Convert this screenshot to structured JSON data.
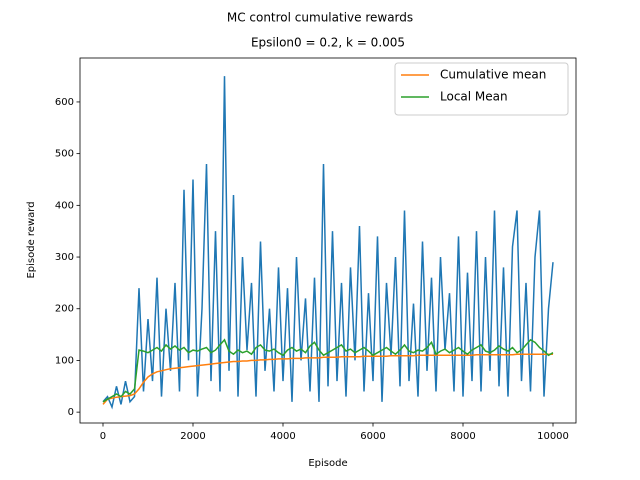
{
  "chart_data": {
    "type": "line",
    "title": "MC control cumulative rewards",
    "subtitle": "Epsilon0 = 0.2, k = 0.005",
    "x_label": "Episode",
    "y_label": "Episode reward",
    "x": [
      0,
      100,
      200,
      300,
      400,
      500,
      600,
      700,
      800,
      900,
      1000,
      1100,
      1200,
      1300,
      1400,
      1500,
      1600,
      1700,
      1800,
      1900,
      2000,
      2100,
      2200,
      2300,
      2400,
      2500,
      2600,
      2700,
      2800,
      2900,
      3000,
      3100,
      3200,
      3300,
      3400,
      3500,
      3600,
      3700,
      3800,
      3900,
      4000,
      4100,
      4200,
      4300,
      4400,
      4500,
      4600,
      4700,
      4800,
      4900,
      5000,
      5100,
      5200,
      5300,
      5400,
      5500,
      5600,
      5700,
      5800,
      5900,
      6000,
      6100,
      6200,
      6300,
      6400,
      6500,
      6600,
      6700,
      6800,
      6900,
      7000,
      7100,
      7200,
      7300,
      7400,
      7500,
      7600,
      7700,
      7800,
      7900,
      8000,
      8100,
      8200,
      8300,
      8400,
      8500,
      8600,
      8700,
      8800,
      8900,
      9000,
      9100,
      9200,
      9300,
      9400,
      9500,
      9600,
      9700,
      9800,
      9900,
      10000
    ],
    "series": [
      {
        "color": "#1f77b4",
        "values": [
          20,
          30,
          10,
          50,
          15,
          60,
          20,
          30,
          240,
          40,
          180,
          60,
          260,
          30,
          200,
          80,
          250,
          40,
          430,
          100,
          450,
          30,
          200,
          480,
          60,
          350,
          40,
          650,
          80,
          420,
          30,
          300,
          120,
          250,
          30,
          330,
          80,
          200,
          40,
          280,
          60,
          240,
          20,
          300,
          100,
          220,
          40,
          260,
          20,
          480,
          50,
          350,
          60,
          250,
          30,
          280,
          100,
          360,
          40,
          230,
          60,
          340,
          20,
          250,
          110,
          300,
          50,
          390,
          60,
          210,
          30,
          330,
          80,
          260,
          40,
          300,
          120,
          230,
          40,
          340,
          30,
          270,
          60,
          350,
          40,
          300,
          80,
          390,
          50,
          280,
          30,
          320,
          390,
          60,
          250,
          40,
          300,
          390,
          30,
          200,
          290
        ]
      },
      {
        "name": "Cumulative mean",
        "color": "#ff7f0e",
        "values": [
          15,
          25,
          27,
          29,
          30,
          31,
          32,
          35,
          45,
          58,
          68,
          74,
          78,
          80,
          82,
          84,
          85,
          86,
          87,
          88,
          89,
          90,
          91,
          92,
          93,
          94,
          95,
          96,
          97,
          98,
          98,
          99,
          99,
          100,
          100,
          101,
          101,
          102,
          102,
          103,
          103,
          103,
          104,
          104,
          104,
          105,
          105,
          105,
          105,
          106,
          106,
          106,
          106,
          107,
          107,
          107,
          107,
          107,
          108,
          108,
          108,
          108,
          108,
          108,
          109,
          109,
          109,
          109,
          109,
          109,
          110,
          110,
          110,
          110,
          110,
          110,
          110,
          110,
          110,
          110,
          110,
          110,
          110,
          111,
          111,
          111,
          111,
          111,
          111,
          111,
          111,
          111,
          112,
          112,
          112,
          112,
          112,
          112,
          112,
          112,
          112
        ]
      },
      {
        "name": "Local Mean",
        "color": "#2ca02c",
        "values": [
          20,
          25,
          30,
          35,
          30,
          40,
          35,
          45,
          120,
          118,
          115,
          120,
          125,
          118,
          130,
          122,
          128,
          120,
          125,
          115,
          120,
          118,
          122,
          125,
          115,
          120,
          130,
          140,
          118,
          112,
          120,
          115,
          118,
          112,
          125,
          130,
          120,
          118,
          122,
          115,
          110,
          120,
          125,
          118,
          122,
          115,
          128,
          135,
          120,
          110,
          115,
          120,
          125,
          130,
          118,
          122,
          115,
          120,
          125,
          118,
          110,
          115,
          120,
          125,
          118,
          112,
          120,
          130,
          118,
          115,
          120,
          118,
          125,
          135,
          112,
          118,
          122,
          115,
          120,
          125,
          118,
          112,
          120,
          125,
          130,
          118,
          115,
          120,
          128,
          122,
          118,
          125,
          115,
          120,
          130,
          140,
          135,
          125,
          118,
          110,
          115
        ]
      }
    ],
    "xlim": [
      -511,
      10511
    ],
    "ylim": [
      -21,
      685
    ],
    "xticks": [
      0,
      2000,
      4000,
      6000,
      8000,
      10000
    ],
    "yticks": [
      0,
      100,
      200,
      300,
      400,
      500,
      600
    ],
    "legend": "upper right"
  }
}
